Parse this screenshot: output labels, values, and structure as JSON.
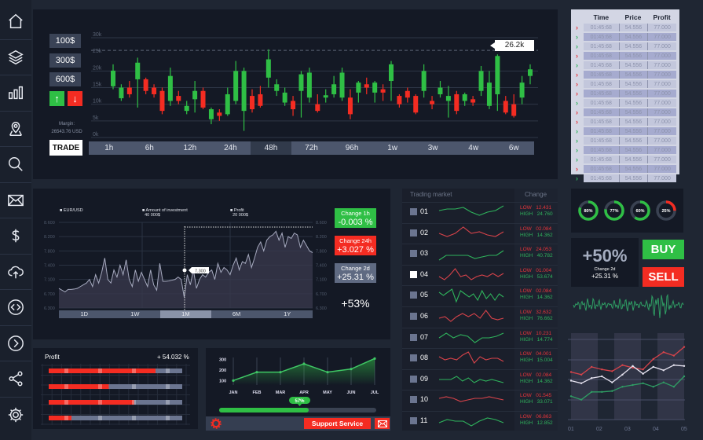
{
  "sidebar": {
    "icons": [
      "home-icon",
      "layers-icon",
      "bar-chart-icon",
      "map-pin-icon",
      "search-icon",
      "mail-icon",
      "dollar-icon",
      "cloud-upload-icon",
      "code-icon",
      "chevron-right-icon",
      "share-icon",
      "gear-icon"
    ]
  },
  "trade_panel": {
    "amounts": [
      "100$",
      "300$",
      "600$"
    ],
    "up_label": "↑",
    "down_label": "↓",
    "margin_label": "Margin:",
    "margin_value": "26543.76 USD",
    "trade_label": "TRADE"
  },
  "candle_chart": {
    "type": "candlestick",
    "y_ticks": [
      "30k",
      "25k",
      "20k",
      "15k",
      "10k",
      "5k",
      "0k"
    ],
    "ylim": [
      0,
      30
    ],
    "marker_value": 26.2,
    "marker_label": "26.2k",
    "periods": [
      "1h",
      "6h",
      "12h",
      "24h",
      "48h",
      "72h",
      "96h",
      "1w",
      "3w",
      "4w",
      "6w"
    ],
    "active_period": "48h",
    "candles": [
      [
        15.4,
        20.1,
        22,
        14.5
      ],
      [
        11.8,
        15,
        16,
        11
      ],
      [
        15,
        13,
        17,
        12
      ],
      [
        17.5,
        22.5,
        24,
        9
      ],
      [
        17.5,
        14,
        18,
        13
      ],
      [
        15,
        13,
        16,
        12
      ],
      [
        14,
        8,
        15,
        7
      ],
      [
        11,
        18.5,
        21,
        9.5
      ],
      [
        12.5,
        11,
        14,
        10
      ],
      [
        8,
        9.5,
        11,
        7
      ],
      [
        11.5,
        14,
        17,
        7.5
      ],
      [
        14,
        9,
        15,
        8.5
      ],
      [
        5.5,
        8.5,
        9,
        4
      ],
      [
        7.5,
        6.5,
        8.5,
        5
      ],
      [
        7,
        13,
        15,
        6.5
      ],
      [
        11,
        20,
        23,
        10
      ],
      [
        8,
        20,
        21,
        2
      ],
      [
        12.5,
        8.5,
        14.5,
        7.5
      ],
      [
        13,
        9.5,
        15.5,
        9
      ],
      [
        18,
        23.5,
        26.5,
        15
      ],
      [
        14,
        16,
        17.5,
        12.5
      ],
      [
        10.5,
        13.5,
        15,
        9.5
      ],
      [
        11,
        8.5,
        12.5,
        6.5
      ],
      [
        14,
        19,
        20,
        6
      ],
      [
        12,
        19.5,
        21,
        10.5
      ],
      [
        10,
        8,
        13,
        7.5
      ],
      [
        12,
        12.7,
        14.5,
        10.5
      ],
      [
        13,
        16,
        18.5,
        12
      ],
      [
        12,
        19.5,
        21,
        11
      ],
      [
        12,
        7,
        14.5,
        5.5
      ],
      [
        13.5,
        16.5,
        17,
        10.5
      ],
      [
        16,
        15,
        18,
        13
      ],
      [
        13.5,
        16.5,
        17,
        10.5
      ],
      [
        14.5,
        13.5,
        16,
        11
      ],
      [
        17,
        22,
        23,
        11
      ],
      [
        12.5,
        10,
        13,
        9
      ],
      [
        14,
        12,
        15,
        10.5
      ],
      [
        12.5,
        7.5,
        13,
        7
      ],
      [
        14,
        20,
        22,
        12
      ],
      [
        11,
        10,
        12.5,
        8.5
      ],
      [
        13,
        15,
        17,
        12
      ],
      [
        11,
        12.5,
        15.5,
        6
      ],
      [
        13,
        8,
        14,
        7
      ],
      [
        11,
        13,
        13.5,
        9.5
      ],
      [
        11.5,
        10.5,
        12.5,
        9.5
      ],
      [
        14,
        20,
        21.5,
        12.5
      ],
      [
        9.5,
        16.5,
        20,
        8.5
      ],
      [
        13,
        24.5,
        25,
        8
      ],
      [
        11,
        7.5,
        12.5,
        7
      ],
      [
        10,
        6.5,
        13,
        6
      ],
      [
        12,
        16.5,
        18.5,
        10
      ],
      [
        18.5,
        20.5,
        22,
        16
      ]
    ]
  },
  "trades_table": {
    "headers": [
      "Time",
      "Price",
      "Profit"
    ],
    "rows": [
      {
        "dir": "down",
        "time": "01:45:68",
        "price": "54.556",
        "profit": "77.000"
      },
      {
        "dir": "up",
        "time": "01:45:68",
        "price": "54.556",
        "profit": "77.000"
      },
      {
        "dir": "up",
        "time": "01:45:68",
        "price": "54.556",
        "profit": "77.000"
      },
      {
        "dir": "down",
        "time": "01:45:68",
        "price": "54.556",
        "profit": "77.000"
      },
      {
        "dir": "up",
        "time": "01:45:68",
        "price": "54.556",
        "profit": "77.000"
      },
      {
        "dir": "down",
        "time": "01:45:68",
        "price": "54.556",
        "profit": "77.000"
      },
      {
        "dir": "down",
        "time": "01:45:68",
        "price": "54.556",
        "profit": "77.000"
      },
      {
        "dir": "down",
        "time": "01:45:68",
        "price": "54.556",
        "profit": "77.000"
      },
      {
        "dir": "up",
        "time": "01:45:68",
        "price": "54.556",
        "profit": "77.000"
      },
      {
        "dir": "down",
        "time": "01:45:68",
        "price": "54.556",
        "profit": "77.000"
      },
      {
        "dir": "down",
        "time": "01:45:68",
        "price": "54.556",
        "profit": "77.000"
      },
      {
        "dir": "up",
        "time": "01:45:68",
        "price": "54.556",
        "profit": "77.000"
      },
      {
        "dir": "up",
        "time": "01:45:68",
        "price": "54.556",
        "profit": "77.000"
      },
      {
        "dir": "up",
        "time": "01:45:68",
        "price": "54.556",
        "profit": "77.000"
      },
      {
        "dir": "up",
        "time": "01:45:68",
        "price": "54.556",
        "profit": "77.000"
      },
      {
        "dir": "down",
        "time": "01:45:68",
        "price": "54.556",
        "profit": "77.000"
      },
      {
        "dir": "up",
        "time": "01:45:68",
        "price": "54.556",
        "profit": "77.000"
      }
    ]
  },
  "chart_data": {
    "type": "area",
    "legend": [
      {
        "label": "EUR/USD",
        "value": ""
      },
      {
        "label": "Amount of investment",
        "value": "40 000$"
      },
      {
        "label": "Profit",
        "value": "20 000$"
      }
    ],
    "y_ticks": [
      8.6,
      8.2,
      7.8,
      7.4,
      7.1,
      6.7,
      6.3
    ],
    "y_tick_labels": [
      "8.600",
      "8.200",
      "7.800",
      "7.400",
      "7.100",
      "6.700",
      "6.300"
    ],
    "values": [
      6.85,
      6.8,
      6.75,
      6.82,
      6.82,
      6.83,
      6.85,
      6.9,
      6.95,
      7.0,
      7.1,
      6.9,
      7.2,
      7.0,
      7.25,
      7.6,
      7.1,
      7.0,
      7.3,
      7.15,
      7.4,
      7.2,
      7.55,
      7.1,
      6.9,
      7.3,
      7.05,
      7.25,
      7.1,
      6.9,
      7.3,
      6.95,
      6.8,
      7.45,
      7.05,
      7.05,
      7.06,
      7.08,
      7.1,
      7.15,
      7.1,
      6.6,
      7.2,
      6.95,
      7.3,
      6.85,
      7.1,
      7.2,
      7.15,
      7.25,
      7.3,
      7.1,
      7.45,
      7.25,
      7.35,
      7.3,
      7.2,
      7.4,
      7.6,
      7.3,
      7.5,
      7.45,
      7.7,
      7.35,
      7.6,
      7.9,
      8.05,
      7.8,
      8.1,
      8.2,
      8.25,
      8.35,
      8.1,
      8.3,
      7.9,
      8.2,
      8.15,
      8.3,
      8.25,
      7.9,
      8.1,
      7.95,
      7.8,
      7.75
    ],
    "tooltip": "7.300",
    "ranges": [
      "1D",
      "1W",
      "1M",
      "6M",
      "1Y"
    ],
    "active_range": "1M"
  },
  "changes": [
    {
      "label": "Change 1h",
      "value": "-0.003 %",
      "color": "#2fbf45"
    },
    {
      "label": "Change 24h",
      "value": "+3.027 %",
      "color": "#f42c22"
    },
    {
      "label": "Change 2d",
      "value": "+25.31 %",
      "color": "#5f6a82"
    }
  ],
  "total_change": "+53%",
  "market": {
    "title": "Trading market",
    "change_header": "Change",
    "low_label": "LOW",
    "high_label": "HIGH",
    "rows": [
      {
        "id": "01",
        "color": "#2fb35c",
        "low": "12.431",
        "high": "24.760",
        "checked": false,
        "spark": [
          5,
          6,
          6,
          7,
          4,
          2,
          4,
          5,
          8
        ]
      },
      {
        "id": "02",
        "color": "#d8434a",
        "low": "02.084",
        "high": "14.362",
        "checked": false,
        "spark": [
          4,
          2,
          4,
          8,
          4,
          5,
          3,
          2,
          5
        ]
      },
      {
        "id": "03",
        "color": "#2fb35c",
        "low": "24.053",
        "high": "40.782",
        "checked": false,
        "spark": [
          0,
          3,
          3,
          3,
          3,
          1,
          2,
          3,
          3,
          6
        ]
      },
      {
        "id": "04",
        "color": "#d8434a",
        "low": "01.004",
        "high": "53.674",
        "checked": false,
        "white": true,
        "spark": [
          3,
          1,
          4,
          8,
          3,
          4,
          1,
          3,
          4,
          3,
          5,
          3,
          5
        ]
      },
      {
        "id": "05",
        "color": "#2fb35c",
        "low": "02.084",
        "high": "14.362",
        "checked": false,
        "spark": [
          6,
          4,
          6,
          8,
          0,
          7,
          5,
          3,
          5,
          1,
          7,
          2,
          5,
          1,
          5,
          3
        ]
      },
      {
        "id": "06",
        "color": "#d8434a",
        "low": "32.632",
        "high": "76.662",
        "checked": false,
        "spark": [
          3,
          4,
          1,
          4,
          6,
          4,
          6,
          3,
          8,
          3,
          2,
          3
        ]
      },
      {
        "id": "07",
        "color": "#2fb35c",
        "low": "10.231",
        "high": "14.774",
        "checked": false,
        "spark": [
          4,
          7,
          4,
          6,
          5,
          1,
          4,
          4,
          5,
          7
        ]
      },
      {
        "id": "08",
        "color": "#d8434a",
        "low": "04.001",
        "high": "15.004",
        "checked": false,
        "spark": [
          5,
          3,
          4,
          3,
          6,
          8,
          1,
          5,
          3,
          4,
          4,
          2
        ]
      },
      {
        "id": "09",
        "color": "#2fb35c",
        "low": "02.084",
        "high": "14.362",
        "checked": false,
        "spark": [
          4,
          4,
          4,
          6,
          3,
          5,
          2,
          4,
          3,
          4,
          3,
          2
        ]
      },
      {
        "id": "10",
        "color": "#d8434a",
        "low": "01.545",
        "high": "33.071",
        "checked": false,
        "spark": [
          5,
          6,
          5,
          3,
          4,
          5,
          5,
          6,
          5,
          4
        ]
      },
      {
        "id": "11",
        "color": "#2fb35c",
        "low": "06.863",
        "high": "12.852",
        "checked": false,
        "spark": [
          3,
          5,
          4,
          4,
          1,
          4,
          6,
          5,
          3
        ]
      }
    ]
  },
  "donuts": [
    {
      "value": 80,
      "label": "80%",
      "color": "#2fbf45"
    },
    {
      "value": 77,
      "label": "77%",
      "color": "#2fbf45"
    },
    {
      "value": 60,
      "label": "60%",
      "color": "#2fbf45"
    },
    {
      "value": 25,
      "label": "25%",
      "color": "#f42c22"
    }
  ],
  "summary": {
    "big": "+50%",
    "label": "Change 2d",
    "value": "+25.31 %",
    "buy_label": "BUY",
    "sell_label": "SELL"
  },
  "multi_line": {
    "type": "line",
    "x_labels": [
      "01",
      "02",
      "03",
      "04",
      "05"
    ],
    "series": [
      {
        "color": "#d8434a",
        "values": [
          55,
          52,
          61,
          58,
          56,
          63,
          60,
          58,
          70,
          78,
          74,
          84
        ]
      },
      {
        "color": "#e6e3f0",
        "values": [
          45,
          42,
          48,
          50,
          43,
          52,
          62,
          53,
          61,
          57,
          63,
          62
        ]
      },
      {
        "color": "#2f9e64",
        "values": [
          27,
          23,
          32,
          32,
          33,
          38,
          40,
          42,
          38,
          43,
          38,
          50
        ]
      }
    ]
  },
  "profit_panel": {
    "title": "Profit",
    "value": "+ 54.032 %",
    "bars": [
      0.8,
      0.45,
      0.64,
      0.17
    ]
  },
  "area_chart": {
    "type": "area",
    "categories": [
      "JAN",
      "FEB",
      "MAR",
      "APR",
      "MAY",
      "JUN",
      "JUL"
    ],
    "values": [
      100,
      180,
      180,
      260,
      180,
      210,
      310
    ],
    "y_ticks": [
      "300",
      "200",
      "100"
    ],
    "progress": 57,
    "progress_label": "57%"
  },
  "footer": {
    "support_label": "Support Service"
  }
}
